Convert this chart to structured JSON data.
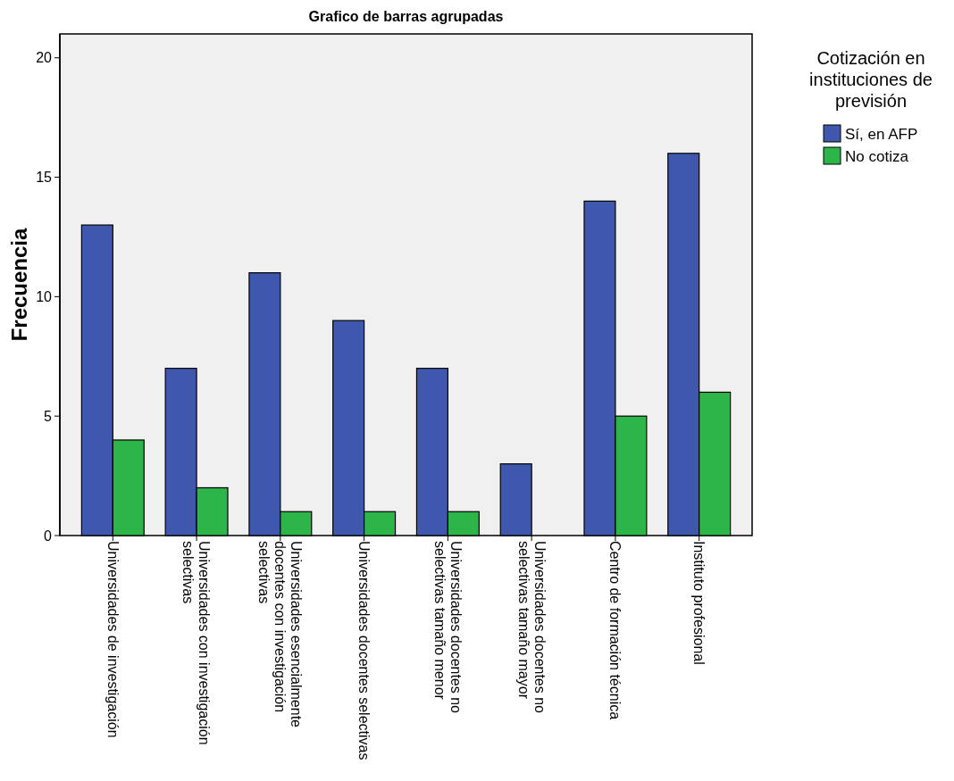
{
  "chart_data": {
    "type": "bar",
    "title": "Grafico de barras agrupadas",
    "ylabel": "Frecuencia",
    "legend_title": "Cotización en instituciones de previsión",
    "categories": [
      "Universidades de investigación",
      "Universidades con investigación selectivas",
      "Universidades esencialmente docentes con investigación selectivas",
      "Universidades docentes selectivas",
      "Universidades docentes no selectivas tamaño menor",
      "Universidades docentes no selectivas tamaño mayor",
      "Centro de formación técnica",
      "Instituto profesional"
    ],
    "series": [
      {
        "name": "Sí, en AFP",
        "color": "#3f58ad",
        "values": [
          13,
          7,
          11,
          9,
          7,
          3,
          14,
          16
        ]
      },
      {
        "name": "No cotiza",
        "color": "#2db54a",
        "values": [
          4,
          2,
          1,
          1,
          1,
          0,
          5,
          6
        ]
      }
    ],
    "ylim": [
      0,
      21
    ],
    "yticks": [
      0,
      5,
      10,
      15,
      20
    ],
    "grid": false,
    "legend": "right"
  }
}
